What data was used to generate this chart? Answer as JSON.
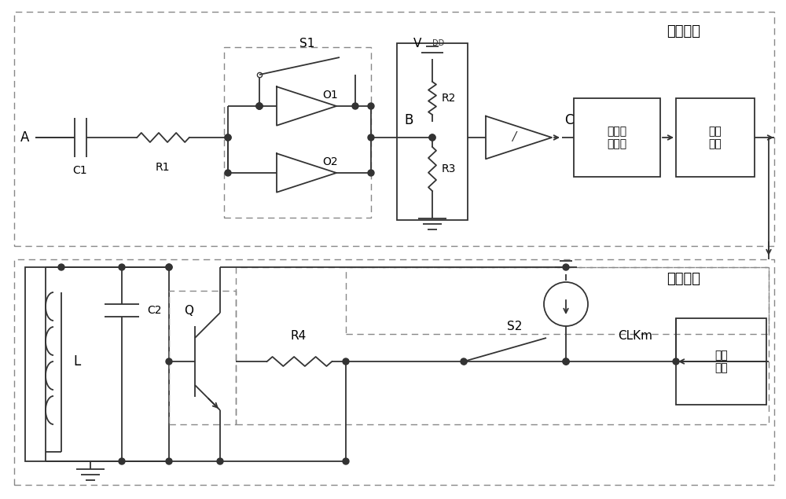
{
  "fig_width": 10.0,
  "fig_height": 6.35,
  "bg_color": "#ffffff",
  "line_color": "#333333",
  "dash_color": "#888888",
  "text_color": "#000000",
  "title_top": "接收链路",
  "title_bottom": "调制链路",
  "label_A": "A",
  "label_B": "B",
  "label_C": "C",
  "label_C1": "C1",
  "label_R1": "R1",
  "label_O1": "O1",
  "label_O2": "O2",
  "label_S1": "S1",
  "label_VDD": "V",
  "label_DD": "DD",
  "label_R2": "R2",
  "label_R3": "R3",
  "label_elev": "电平转\n换装置",
  "label_demod": "解调\n装置",
  "label_L": "L",
  "label_C2": "C2",
  "label_Q": "Q",
  "label_R4": "R4",
  "label_S2": "S2",
  "label_CLKm": "CLKm",
  "label_mod": "调制\n装置"
}
